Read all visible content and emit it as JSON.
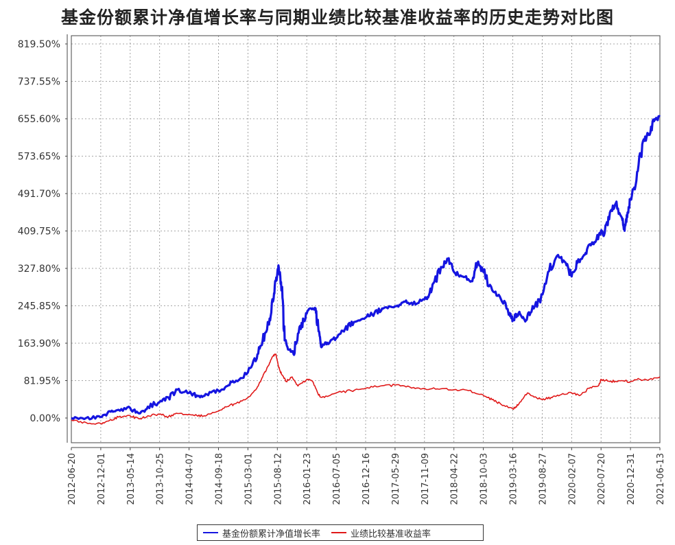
{
  "title": "基金份额累计净值增长率与同期业绩比较基准收益率的历史走势对比图",
  "legend": {
    "items": [
      {
        "label": "基金份额累计净值增长率",
        "color": "#1515e0"
      },
      {
        "label": "业绩比较基准收益率",
        "color": "#e01818"
      }
    ]
  },
  "chart_data": {
    "type": "line",
    "title": "基金份额累计净值增长率与同期业绩比较基准收益率的历史走势对比图",
    "xlabel": "",
    "ylabel": "",
    "ylim": [
      -60,
      830
    ],
    "grid": true,
    "legend_position": "bottom",
    "y_ticks": [
      "0.00%",
      "81.95%",
      "163.90%",
      "245.85%",
      "327.80%",
      "409.75%",
      "491.70%",
      "573.65%",
      "655.60%",
      "737.55%",
      "819.50%"
    ],
    "y_tick_values": [
      0,
      81.95,
      163.9,
      245.85,
      327.8,
      409.75,
      491.7,
      573.65,
      655.6,
      737.55,
      819.5
    ],
    "x_ticks": [
      "2012-06-20",
      "2012-12-01",
      "2013-05-14",
      "2013-10-25",
      "2014-04-07",
      "2014-09-18",
      "2015-03-01",
      "2015-08-12",
      "2016-01-23",
      "2016-07-05",
      "2016-12-16",
      "2017-05-29",
      "2017-11-09",
      "2018-04-22",
      "2018-10-03",
      "2019-03-16",
      "2019-08-27",
      "2020-02-07",
      "2020-07-20",
      "2020-12-31",
      "2021-06-13"
    ],
    "series": [
      {
        "name": "基金份额累计净值增长率",
        "color": "#1515e0",
        "x_index": [
          0,
          0.5,
          1,
          1.3,
          1.6,
          2,
          2.3,
          2.6,
          3,
          3.3,
          3.6,
          4,
          4.3,
          4.6,
          5,
          5.3,
          5.6,
          6,
          6.3,
          6.5,
          6.7,
          6.85,
          6.95,
          7.05,
          7.15,
          7.25,
          7.4,
          7.55,
          7.7,
          7.9,
          8.1,
          8.3,
          8.4,
          8.5,
          8.7,
          9,
          9.3,
          9.6,
          10,
          10.3,
          10.6,
          11,
          11.3,
          11.6,
          12,
          12.1,
          12.3,
          12.6,
          12.8,
          13,
          13.3,
          13.6,
          13.8,
          14,
          14.3,
          14.6,
          14.9,
          15,
          15.2,
          15.4,
          15.6,
          15.9,
          16.2,
          16.5,
          16.8,
          17,
          17.2,
          17.4,
          17.6,
          17.8,
          18,
          18.1,
          18.3,
          18.5,
          18.7,
          18.8,
          18.9,
          19,
          19.2,
          19.4,
          19.6,
          19.8,
          20
        ],
        "values": [
          0,
          0,
          2,
          15,
          18,
          22,
          10,
          25,
          35,
          45,
          62,
          55,
          48,
          52,
          60,
          70,
          82,
          100,
          130,
          170,
          205,
          255,
          300,
          330,
          280,
          170,
          150,
          140,
          185,
          215,
          240,
          240,
          190,
          155,
          165,
          175,
          195,
          210,
          220,
          230,
          240,
          245,
          255,
          248,
          260,
          265,
          295,
          330,
          348,
          320,
          310,
          300,
          340,
          320,
          280,
          260,
          230,
          215,
          230,
          215,
          230,
          260,
          320,
          355,
          340,
          310,
          340,
          355,
          380,
          385,
          410,
          400,
          450,
          470,
          440,
          410,
          450,
          480,
          520,
          600,
          620,
          650,
          660
        ]
      },
      {
        "name": "业绩比较基准收益率",
        "color": "#e01818",
        "x_index": [
          0,
          0.5,
          1,
          1.3,
          1.6,
          2,
          2.3,
          2.6,
          3,
          3.3,
          3.6,
          4,
          4.3,
          4.6,
          5,
          5.3,
          5.6,
          6,
          6.3,
          6.5,
          6.7,
          6.85,
          6.95,
          7.05,
          7.15,
          7.3,
          7.5,
          7.7,
          8,
          8.2,
          8.4,
          8.6,
          9,
          9.5,
          10,
          10.5,
          11,
          11.5,
          12,
          12.5,
          13,
          13.5,
          14,
          14.3,
          14.6,
          15,
          15.2,
          15.5,
          15.8,
          16,
          16.3,
          16.6,
          17,
          17.3,
          17.6,
          17.9,
          18,
          18.3,
          18.6,
          19,
          19.3,
          19.6,
          20
        ],
        "values": [
          -5,
          -10,
          -12,
          -5,
          2,
          5,
          -2,
          5,
          8,
          3,
          10,
          8,
          4,
          6,
          15,
          25,
          32,
          45,
          65,
          90,
          115,
          135,
          140,
          110,
          95,
          80,
          90,
          70,
          85,
          80,
          50,
          45,
          55,
          60,
          65,
          70,
          72,
          68,
          65,
          63,
          62,
          60,
          50,
          40,
          30,
          20,
          30,
          55,
          45,
          40,
          45,
          50,
          55,
          50,
          65,
          70,
          85,
          80,
          82,
          80,
          85,
          83,
          90
        ]
      }
    ]
  }
}
